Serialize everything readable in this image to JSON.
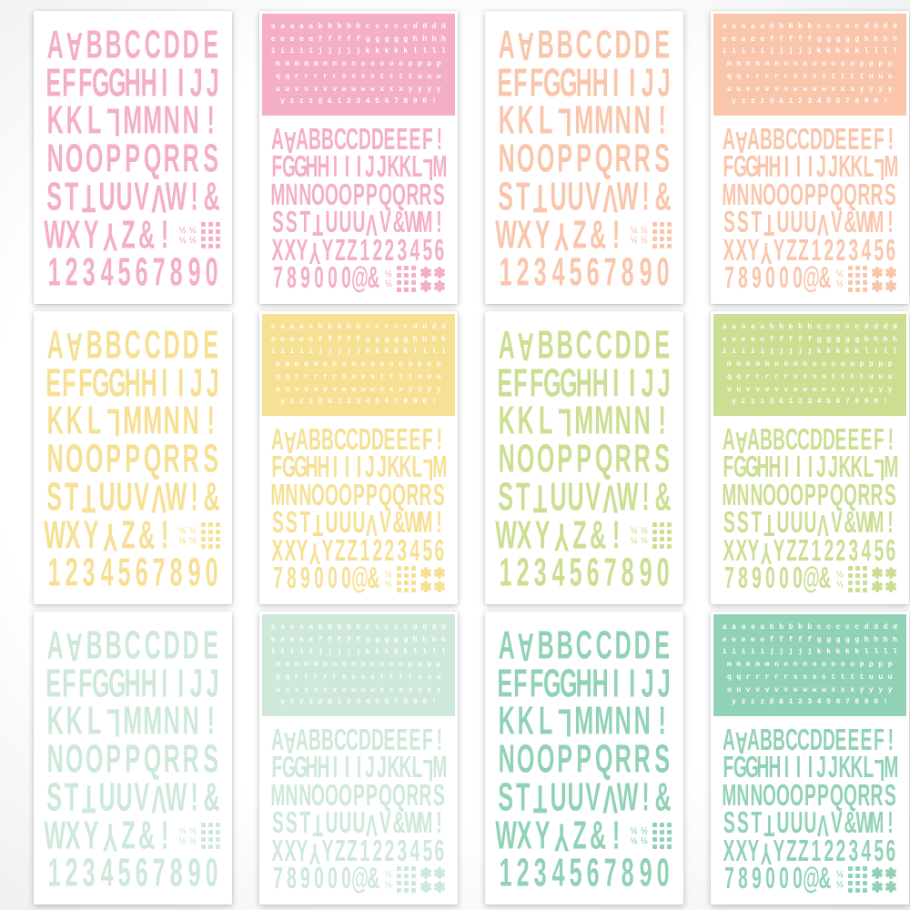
{
  "palette": {
    "pink": "#F4AEC7",
    "peach": "#F9C6AC",
    "yellow": "#F6E094",
    "green": "#CBDE92",
    "mint": "#CEE8D9",
    "teal": "#91D2B6",
    "panel_letter_color": "#FFFFFF",
    "sheet_background": "#FFFFFF"
  },
  "decorations": {
    "fraction_glyph": "½"
  },
  "templates": {
    "large": {
      "lines": [
        {
          "text": "A∀BBCCDDE"
        },
        {
          "text": "EFFGGHHIIJJ"
        },
        {
          "text": "KKL⅂MMNN!"
        },
        {
          "text": "NOOPPQRRS"
        },
        {
          "text": "ST⊥UUVΛW!&"
        },
        {
          "text": "WXY⅄Z&!",
          "extras": [
            "fractions-2x2",
            "dot-grid-3x4"
          ]
        },
        {
          "text": "1234567890"
        }
      ]
    },
    "combo": {
      "mini_lines": [
        "a a a a a b b b b b c c c c c d d d d",
        "e e e e e f f f f f g g g g g h h h h",
        "i i i i i j j j j j k k k k k l l l l",
        "m m m m m n n n n o o o o o p p p p",
        "q q r r r r r s s s s t t t t u u u",
        "u u v v v v v w w w w x x x y y y y",
        "y z z z @ & 1 2 3 4 5 6 7 8 9 0 !"
      ],
      "large_lines": [
        {
          "text": "A∀ABBCCDDEEEF!"
        },
        {
          "text": "FGGHHIIIJJKKL⅂M"
        },
        {
          "text": "MNNOOOPPQQRRS"
        },
        {
          "text": "SST⊥UUUΛV&WM!"
        },
        {
          "text": "XXY⅄YZZ1223456"
        },
        {
          "text": "789000@&",
          "extras": [
            "fractions-1x2",
            "dot-grid-3x4",
            "flowers-2x2"
          ]
        }
      ]
    }
  },
  "sheets": [
    {
      "type": "large",
      "color": "pink"
    },
    {
      "type": "combo",
      "color": "pink"
    },
    {
      "type": "large",
      "color": "peach"
    },
    {
      "type": "combo",
      "color": "peach"
    },
    {
      "type": "large",
      "color": "yellow"
    },
    {
      "type": "combo",
      "color": "yellow"
    },
    {
      "type": "large",
      "color": "green"
    },
    {
      "type": "combo",
      "color": "green"
    },
    {
      "type": "large",
      "color": "mint"
    },
    {
      "type": "combo",
      "color": "mint"
    },
    {
      "type": "large",
      "color": "teal"
    },
    {
      "type": "combo",
      "color": "teal"
    }
  ]
}
